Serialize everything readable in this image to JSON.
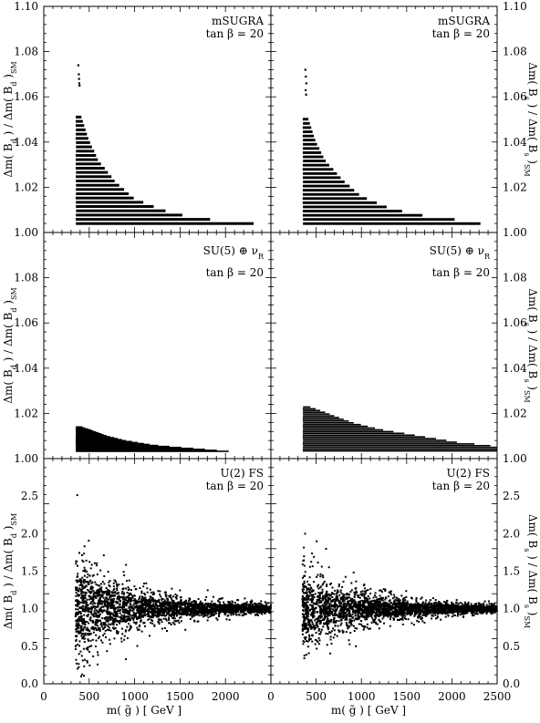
{
  "chart_data": {
    "type": "scatter",
    "x_axis": {
      "label": "m( g̃ )  [ GeV ]",
      "range": [
        0,
        2500
      ],
      "left_ticks": [
        "0",
        "500",
        "1000",
        "1500",
        "2000"
      ],
      "right_ticks": [
        "0",
        "500",
        "1000",
        "1500",
        "2000",
        "2500"
      ]
    },
    "rows": [
      {
        "model": "mSUGRA",
        "tanbeta": "tan β = 20",
        "ylim": [
          1.0,
          1.1
        ],
        "yticks": [
          "1.00",
          "1.02",
          "1.04",
          "1.06",
          "1.08",
          "1.10"
        ],
        "ylabel_left": "Δm( B_d ) / Δm( B_d )_SM",
        "ylabel_right": "Δm( B_s ) / Δm( B_s )_SM",
        "style": "bands",
        "left_points": [
          [
            380,
            1.074
          ],
          [
            385,
            1.07
          ],
          [
            390,
            1.066
          ],
          [
            393,
            1.065
          ],
          [
            388,
            1.068
          ]
        ],
        "right_points": [
          [
            380,
            1.072
          ],
          [
            385,
            1.069
          ],
          [
            390,
            1.066
          ],
          [
            383,
            1.063
          ],
          [
            388,
            1.061
          ]
        ],
        "envelope_left": [
          [
            350,
            1.006
          ],
          [
            380,
            1.049
          ],
          [
            410,
            1.052
          ],
          [
            500,
            1.041
          ],
          [
            600,
            1.032
          ],
          [
            800,
            1.022
          ],
          [
            1000,
            1.015
          ],
          [
            1300,
            1.01
          ],
          [
            1600,
            1.007
          ],
          [
            2000,
            1.005
          ],
          [
            2300,
            1.004
          ],
          [
            2500,
            1.003
          ]
        ],
        "envelope_right": [
          [
            350,
            1.006
          ],
          [
            380,
            1.047
          ],
          [
            410,
            1.051
          ],
          [
            500,
            1.04
          ],
          [
            600,
            1.032
          ],
          [
            800,
            1.023
          ],
          [
            1000,
            1.016
          ],
          [
            1300,
            1.011
          ],
          [
            1600,
            1.008
          ],
          [
            2000,
            1.006
          ],
          [
            2300,
            1.004
          ],
          [
            2500,
            1.003
          ]
        ]
      },
      {
        "model": "SU(5) ⊕ ν_R",
        "tanbeta": "tan β = 20",
        "ylim": [
          1.0,
          1.1
        ],
        "yticks": [
          "1.00",
          "1.02",
          "1.04",
          "1.06",
          "1.08"
        ],
        "ylabel_left": "Δm( B_d ) / Δm( B_d )_SM",
        "ylabel_right": "Δm( B_s ) / Δm( B_s )_SM",
        "style": "bands",
        "envelope_left": [
          [
            350,
            1.015
          ],
          [
            500,
            1.013
          ],
          [
            700,
            1.01
          ],
          [
            900,
            1.008
          ],
          [
            1200,
            1.006
          ],
          [
            1500,
            1.005
          ],
          [
            1800,
            1.004
          ],
          [
            2100,
            1.003
          ],
          [
            2500,
            1.002
          ]
        ],
        "envelope_right": [
          [
            350,
            1.024
          ],
          [
            500,
            1.022
          ],
          [
            700,
            1.019
          ],
          [
            900,
            1.016
          ],
          [
            1200,
            1.013
          ],
          [
            1500,
            1.011
          ],
          [
            1800,
            1.009
          ],
          [
            2100,
            1.007
          ],
          [
            2400,
            1.006
          ],
          [
            2500,
            1.005
          ]
        ]
      },
      {
        "model": "U(2) FS",
        "tanbeta": "tan β = 20",
        "ylim": [
          0.0,
          3.0
        ],
        "yticks": [
          "0.0",
          "0.5",
          "1.0",
          "1.5",
          "2.0",
          "2.5"
        ],
        "ylabel_left": "Δm( B_d ) / Δm( B_d )_SM",
        "ylabel_right": "Δm( B_s ) / Δm( B_s )_SM",
        "style": "cloud",
        "spread_left": [
          [
            350,
            0.95
          ],
          [
            450,
            0.85
          ],
          [
            600,
            0.6
          ],
          [
            800,
            0.42
          ],
          [
            1000,
            0.3
          ],
          [
            1300,
            0.22
          ],
          [
            1600,
            0.16
          ],
          [
            2000,
            0.1
          ],
          [
            2500,
            0.08
          ]
        ],
        "spread_right": [
          [
            350,
            0.7
          ],
          [
            450,
            0.6
          ],
          [
            600,
            0.45
          ],
          [
            800,
            0.35
          ],
          [
            1000,
            0.27
          ],
          [
            1300,
            0.2
          ],
          [
            1600,
            0.15
          ],
          [
            2000,
            0.1
          ],
          [
            2500,
            0.07
          ]
        ]
      }
    ]
  }
}
